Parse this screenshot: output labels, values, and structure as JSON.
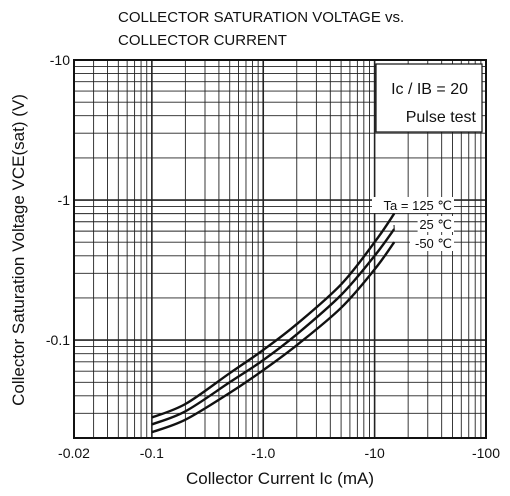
{
  "chart_data": {
    "type": "line",
    "title_line1": "COLLECTOR SATURATION VOLTAGE vs.",
    "title_line2": "COLLECTOR CURRENT",
    "xlabel": "Collector Current  Ic  (mA)",
    "ylabel": "Collector Saturation Voltage  VCE(sat)  (V)",
    "x_scale": "log",
    "y_scale": "log",
    "x_lim_abs": [
      0.02,
      100
    ],
    "y_lim_abs": [
      0.02,
      10
    ],
    "x_tick_labels": [
      "-0.02",
      "-0.1",
      "-1.0",
      "-10",
      "-100"
    ],
    "x_tick_values_abs": [
      0.02,
      0.1,
      1.0,
      10,
      100
    ],
    "y_tick_labels": [
      "-10",
      "-1",
      "-0.1"
    ],
    "y_tick_values_abs": [
      10,
      1,
      0.1
    ],
    "grid": true,
    "annotation_ratio": "Ic / IB = 20",
    "annotation_test": "Pulse test",
    "curve_label_prefix": "Ta =",
    "series": [
      {
        "name": "125 ℃",
        "x_abs": [
          0.1,
          0.2,
          0.5,
          1.0,
          2.0,
          5.0,
          10,
          15
        ],
        "y_abs": [
          0.028,
          0.035,
          0.058,
          0.085,
          0.13,
          0.25,
          0.5,
          0.8
        ]
      },
      {
        "name": "25 ℃",
        "x_abs": [
          0.1,
          0.2,
          0.5,
          1.0,
          2.0,
          5.0,
          10,
          15
        ],
        "y_abs": [
          0.025,
          0.031,
          0.05,
          0.072,
          0.11,
          0.21,
          0.4,
          0.62
        ]
      },
      {
        "name": "-50 ℃",
        "x_abs": [
          0.1,
          0.2,
          0.5,
          1.0,
          2.0,
          5.0,
          10,
          15
        ],
        "y_abs": [
          0.022,
          0.027,
          0.042,
          0.061,
          0.092,
          0.17,
          0.32,
          0.5
        ]
      }
    ]
  }
}
